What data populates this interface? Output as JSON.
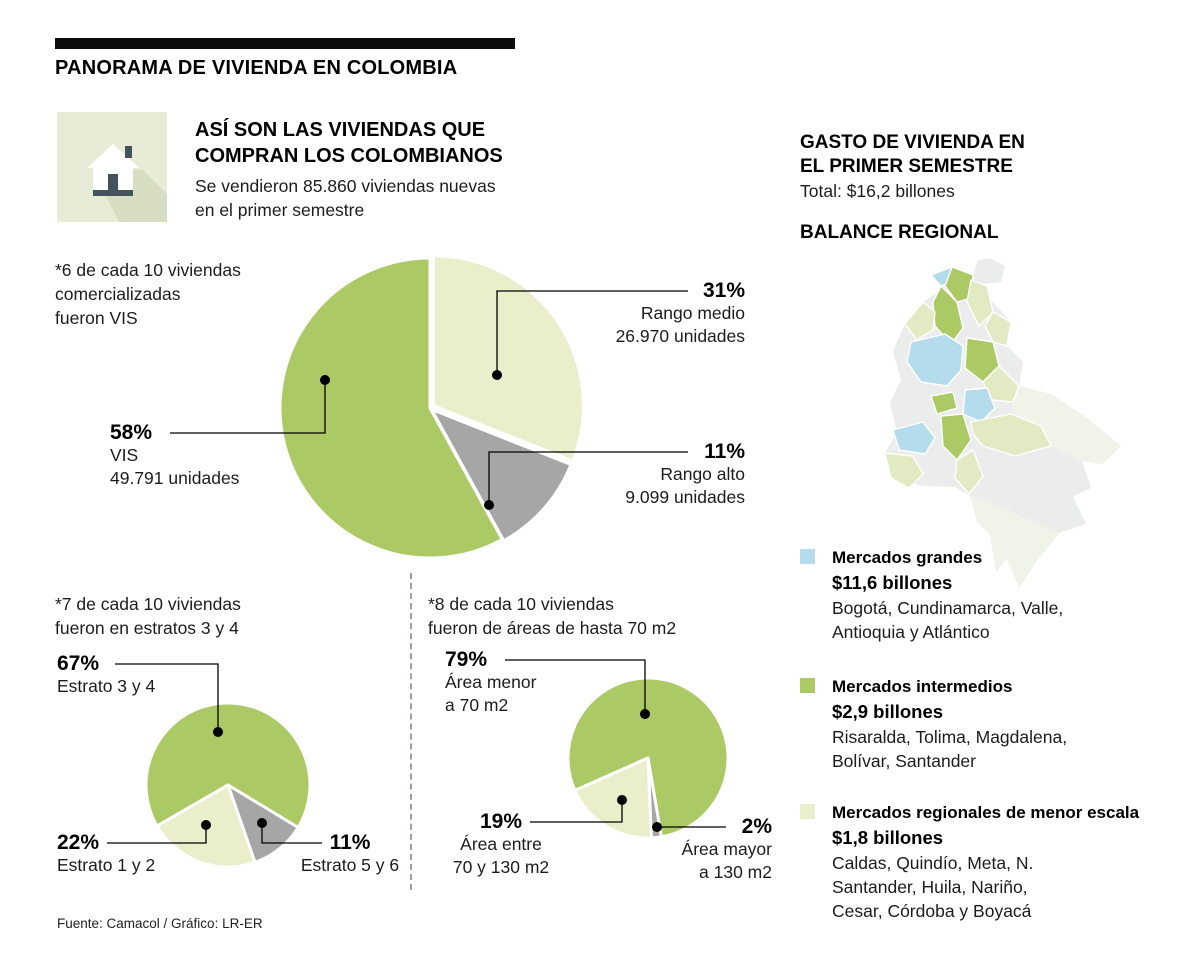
{
  "page": {
    "title": "PANORAMA DE VIVIENDA EN COLOMBIA"
  },
  "intro": {
    "icon": "house-icon",
    "heading_lines": [
      "ASÍ SON LAS VIVIENDAS QUE",
      "COMPRAN LOS COLOMBIANOS"
    ],
    "subtitle_lines": [
      "Se vendieron 85.860 viviendas nuevas",
      "en el primer semestre"
    ]
  },
  "chart_data": [
    {
      "type": "pie",
      "note_lines": [
        "*6 de cada 10 viviendas",
        "comercializadas",
        "fueron VIS"
      ],
      "start_angle": 0,
      "slices": [
        {
          "label": "Rango medio",
          "pct": 31,
          "pct_label": "31%",
          "units": "26.970 unidades",
          "color": "#eaeecb",
          "explode": 4
        },
        {
          "label": "Rango alto",
          "pct": 11,
          "pct_label": "11%",
          "units": "9.099 unidades",
          "color": "#a6a6a6",
          "explode": 2
        },
        {
          "label": "VIS",
          "pct": 58,
          "pct_label": "58%",
          "units": "49.791 unidades",
          "color": "#abc965",
          "explode": 0
        }
      ]
    },
    {
      "type": "pie",
      "note_lines": [
        "*7 de cada 10 viviendas",
        "fueron en estratos 3 y 4"
      ],
      "start_angle": 240,
      "slices": [
        {
          "label": "Estrato 3 y 4",
          "pct": 67,
          "pct_label": "67%",
          "color": "#abc965",
          "explode": 0
        },
        {
          "label": "Estrato 5 y 6",
          "pct": 11,
          "pct_label": "11%",
          "color": "#a6a6a6",
          "explode": 0
        },
        {
          "label": "Estrato 1 y 2",
          "pct": 22,
          "pct_label": "22%",
          "color": "#eaeecb",
          "explode": 0
        }
      ]
    },
    {
      "type": "pie",
      "note_lines": [
        "*8 de cada 10 viviendas",
        "fueron de áreas de hasta 70 m2"
      ],
      "start_angle": 246,
      "slices": [
        {
          "label": "Área menor a 70 m2",
          "label_lines": [
            "Área menor",
            "a 70 m2"
          ],
          "pct": 79,
          "pct_label": "79%",
          "color": "#abc965",
          "explode": 0
        },
        {
          "label": "Área mayor a 130 m2",
          "label_lines": [
            "Área mayor",
            "a 130 m2"
          ],
          "pct": 2,
          "pct_label": "2%",
          "color": "#a6a6a6",
          "explode": 0
        },
        {
          "label": "Área entre 70 y 130 m2",
          "label_lines": [
            "Área entre",
            "70 y 130 m2"
          ],
          "pct": 19,
          "pct_label": "19%",
          "color": "#eaeecb",
          "explode": 0
        }
      ]
    }
  ],
  "right": {
    "heading_lines": [
      "GASTO DE VIVIENDA EN",
      "EL PRIMER SEMESTRE"
    ],
    "total": "Total: $16,2 billones",
    "balance_heading": "BALANCE REGIONAL",
    "map_colors": {
      "grandes": "#b5dcec",
      "intermedios": "#abc965",
      "regionales": "#e2eac4",
      "otros": "#ebecec"
    },
    "legend": [
      {
        "color": "#b5dcec",
        "title": "Mercados grandes",
        "amount": "$11,6 billones",
        "regions_lines": [
          "Bogotá, Cundinamarca, Valle,",
          "Antioquia y Atlántico"
        ]
      },
      {
        "color": "#abc965",
        "title": "Mercados intermedios",
        "amount": "$2,9 billones",
        "regions_lines": [
          "Risaralda, Tolima, Magdalena,",
          "Bolívar, Santander"
        ]
      },
      {
        "color": "#e9eecd",
        "title": "Mercados regionales de menor escala",
        "amount": "$1,8 billones",
        "regions_lines": [
          "Caldas, Quindío, Meta, N.",
          "Santander, Huila, Nariño,",
          "Cesar, Córdoba y Boyacá"
        ]
      }
    ]
  },
  "footer": {
    "source": "Fuente: Camacol / Gráfico: LR-ER"
  }
}
